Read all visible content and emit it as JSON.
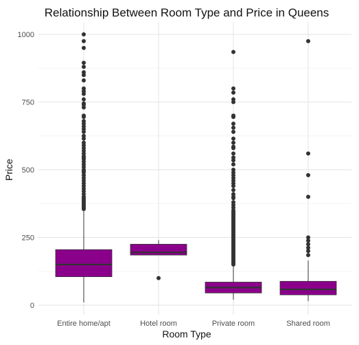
{
  "chart_data": {
    "type": "boxplot",
    "title": "Relationship Between Room Type and Price in Queens",
    "xlabel": "Room Type",
    "ylabel": "Price",
    "ylim": [
      0,
      1000
    ],
    "yticks": [
      0,
      250,
      500,
      750,
      1000
    ],
    "grid": true,
    "fill_color": "#8B008B",
    "outline_color": "#333333",
    "categories": [
      "Entire home/apt",
      "Hotel room",
      "Private room",
      "Shared room"
    ],
    "boxes": [
      {
        "category": "Entire home/apt",
        "whisker_low": 10,
        "q1": 105,
        "median": 150,
        "q3": 205,
        "whisker_high": 352,
        "outliers": [
          1000,
          975,
          950,
          895,
          880,
          860,
          850,
          830,
          800,
          790,
          780,
          760,
          745,
          740,
          730,
          700,
          695,
          680,
          670,
          660,
          650,
          640,
          625,
          615,
          600,
          590,
          580,
          570,
          560,
          550,
          545,
          540,
          530,
          520,
          510,
          500,
          495,
          490,
          480,
          470,
          460,
          450,
          440,
          430,
          420,
          410,
          400,
          395,
          390,
          385,
          380,
          375,
          370,
          365,
          360,
          355
        ]
      },
      {
        "category": "Hotel room",
        "whisker_low": 185,
        "q1": 185,
        "median": 195,
        "q3": 225,
        "whisker_high": 240,
        "outliers": [
          100
        ]
      },
      {
        "category": "Private room",
        "whisker_low": 20,
        "q1": 45,
        "median": 65,
        "q3": 85,
        "whisker_high": 143,
        "outliers": [
          935,
          800,
          785,
          760,
          750,
          700,
          695,
          670,
          655,
          640,
          615,
          600,
          585,
          580,
          560,
          545,
          535,
          520,
          500,
          490,
          480,
          470,
          460,
          450,
          440,
          425,
          410,
          400,
          395,
          380,
          370,
          360,
          350,
          345,
          340,
          335,
          330,
          325,
          320,
          315,
          310,
          305,
          300,
          295,
          290,
          285,
          280,
          275,
          270,
          265,
          260,
          255,
          250,
          245,
          240,
          235,
          230,
          225,
          220,
          215,
          210,
          205,
          200,
          195,
          190,
          185,
          180,
          175,
          170,
          165,
          160,
          155,
          150
        ]
      },
      {
        "category": "Shared room",
        "whisker_low": 15,
        "q1": 38,
        "median": 58,
        "q3": 88,
        "whisker_high": 165,
        "outliers": [
          975,
          560,
          480,
          400,
          250,
          238,
          225,
          212,
          200,
          185
        ]
      }
    ]
  }
}
